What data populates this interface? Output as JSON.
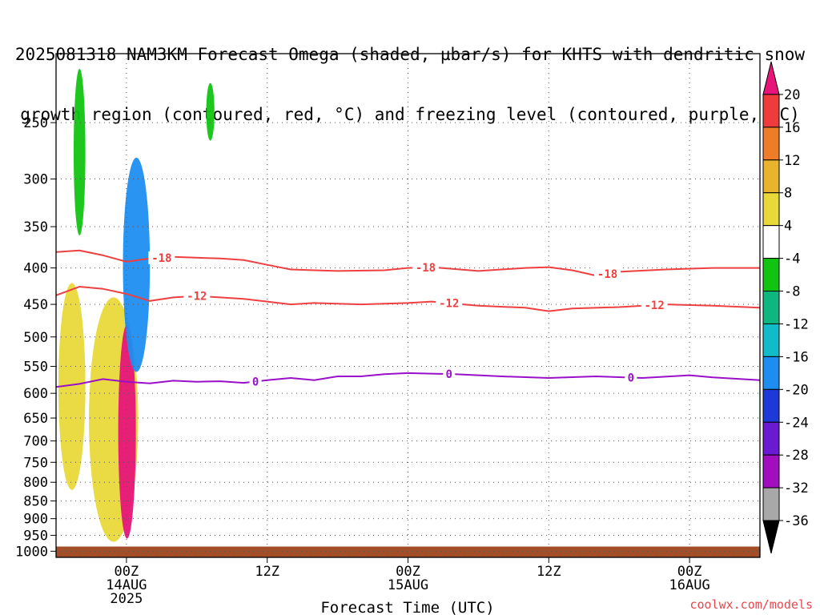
{
  "title": {
    "line1": "2025081318 NAM3KM Forecast Omega (shaded, µbar/s) for KHTS with dendritic snow",
    "line2": "growth region (contoured, red, °C) and freezing level (contoured, purple, °C)"
  },
  "credit": "coolwx.com/models",
  "chart_data": {
    "type": "heatmap",
    "title": "2025081318 NAM3KM Forecast Omega (shaded, µbar/s) for KHTS with dendritic snow growth region (contoured, red, °C) and freezing level (contoured, purple, °C)",
    "xlabel": "Forecast Time (UTC)",
    "ylabel": "",
    "x_range_hours": [
      -6,
      54
    ],
    "y_scale": "log",
    "y_range_mb": [
      200,
      1020
    ],
    "x_ticks": [
      {
        "hours": 0,
        "lines": [
          "00Z",
          "14AUG",
          "2025"
        ]
      },
      {
        "hours": 12,
        "lines": [
          "12Z"
        ]
      },
      {
        "hours": 24,
        "lines": [
          "00Z",
          "15AUG"
        ]
      },
      {
        "hours": 36,
        "lines": [
          "12Z"
        ]
      },
      {
        "hours": 48,
        "lines": [
          "00Z",
          "16AUG"
        ]
      }
    ],
    "y_ticks": [
      "250",
      "300",
      "350",
      "400",
      "450",
      "500",
      "550",
      "600",
      "650",
      "700",
      "750",
      "800",
      "850",
      "900",
      "950",
      "1000"
    ],
    "y_tick_values": [
      250,
      300,
      350,
      400,
      450,
      500,
      550,
      600,
      650,
      700,
      750,
      800,
      850,
      900,
      950,
      1000
    ],
    "grid": "dotted",
    "colorbar": {
      "labels": [
        "20",
        "16",
        "12",
        "8",
        "4",
        "-4",
        "-8",
        "-12",
        "-16",
        "-20",
        "-24",
        "-28",
        "-32",
        "-36"
      ],
      "bands": [
        {
          "range": [
            20,
            999
          ],
          "color": "#e7157a"
        },
        {
          "range": [
            16,
            20
          ],
          "color": "#ee3c3c"
        },
        {
          "range": [
            12,
            16
          ],
          "color": "#ee7c28"
        },
        {
          "range": [
            8,
            12
          ],
          "color": "#e9b32e"
        },
        {
          "range": [
            4,
            8
          ],
          "color": "#e9d83a"
        },
        {
          "range": [
            -4,
            4
          ],
          "color": "#ffffff"
        },
        {
          "range": [
            -8,
            -4
          ],
          "color": "#11c411"
        },
        {
          "range": [
            -12,
            -8
          ],
          "color": "#0fb680"
        },
        {
          "range": [
            -16,
            -12
          ],
          "color": "#11bcc8"
        },
        {
          "range": [
            -20,
            -16
          ],
          "color": "#1d8ef0"
        },
        {
          "range": [
            -24,
            -20
          ],
          "color": "#1d3ad8"
        },
        {
          "range": [
            -28,
            -24
          ],
          "color": "#6a1ad0"
        },
        {
          "range": [
            -32,
            -28
          ],
          "color": "#a10ec0"
        },
        {
          "range": [
            -36,
            -32
          ],
          "color": "#a8a8a8"
        },
        {
          "range": [
            -999,
            -36
          ],
          "color": "#000000"
        }
      ]
    },
    "contours": [
      {
        "label": "-18",
        "color": "#ee4040",
        "label_hours": [
          3,
          25.5,
          41
        ],
        "points": [
          [
            -6,
            380
          ],
          [
            -4,
            378
          ],
          [
            -2,
            384
          ],
          [
            0,
            392
          ],
          [
            2,
            388
          ],
          [
            4,
            386
          ],
          [
            8,
            388
          ],
          [
            10,
            390
          ],
          [
            12,
            396
          ],
          [
            14,
            402
          ],
          [
            18,
            404
          ],
          [
            22,
            403
          ],
          [
            24,
            400
          ],
          [
            26,
            399
          ],
          [
            30,
            404
          ],
          [
            34,
            400
          ],
          [
            36,
            399
          ],
          [
            38,
            403
          ],
          [
            40,
            410
          ],
          [
            42,
            405
          ],
          [
            46,
            402
          ],
          [
            50,
            400
          ],
          [
            54,
            400
          ]
        ]
      },
      {
        "label": "-12",
        "color": "#ee4040",
        "label_hours": [
          6,
          27.5,
          45
        ],
        "points": [
          [
            -6,
            437
          ],
          [
            -4,
            425
          ],
          [
            -2,
            428
          ],
          [
            0,
            435
          ],
          [
            2,
            445
          ],
          [
            4,
            440
          ],
          [
            6,
            438
          ],
          [
            8,
            440
          ],
          [
            10,
            442
          ],
          [
            12,
            446
          ],
          [
            14,
            450
          ],
          [
            16,
            448
          ],
          [
            20,
            450
          ],
          [
            24,
            448
          ],
          [
            26,
            446
          ],
          [
            30,
            452
          ],
          [
            34,
            455
          ],
          [
            36,
            460
          ],
          [
            38,
            456
          ],
          [
            42,
            454
          ],
          [
            46,
            450
          ],
          [
            50,
            452
          ],
          [
            54,
            455
          ]
        ]
      },
      {
        "label": "0",
        "color": "#9a10c8",
        "label_hours": [
          11,
          27.5,
          43
        ],
        "points": [
          [
            -6,
            588
          ],
          [
            -4,
            582
          ],
          [
            -2,
            573
          ],
          [
            0,
            578
          ],
          [
            2,
            581
          ],
          [
            4,
            576
          ],
          [
            6,
            578
          ],
          [
            8,
            577
          ],
          [
            10,
            580
          ],
          [
            12,
            575
          ],
          [
            14,
            571
          ],
          [
            16,
            575
          ],
          [
            18,
            568
          ],
          [
            20,
            568
          ],
          [
            22,
            564
          ],
          [
            24,
            562
          ],
          [
            26,
            563
          ],
          [
            28,
            564
          ],
          [
            32,
            568
          ],
          [
            36,
            571
          ],
          [
            40,
            568
          ],
          [
            44,
            571
          ],
          [
            48,
            566
          ],
          [
            50,
            570
          ],
          [
            54,
            575
          ]
        ]
      }
    ],
    "omega_features": [
      {
        "color": "#e9d83a",
        "note": "weak rising motion ~4-8",
        "x_hours": [
          -5.8,
          -3.5
        ],
        "p_mb": [
          420,
          820
        ]
      },
      {
        "color": "#e9d83a",
        "note": "rising motion column",
        "x_hours": [
          -3.2,
          1.0
        ],
        "p_mb": [
          440,
          970
        ]
      },
      {
        "color": "#e7157a",
        "note": "strong rising motion >20",
        "x_hours": [
          -0.7,
          0.8
        ],
        "p_mb": [
          480,
          960
        ]
      },
      {
        "color": "#11c411",
        "note": "sinking motion band",
        "x_hours": [
          -4.5,
          -3.5
        ],
        "p_mb": [
          210,
          360
        ]
      },
      {
        "color": "#1d8ef0",
        "note": "strong sinking -16 to -20",
        "x_hours": [
          -0.3,
          2.0
        ],
        "p_mb": [
          280,
          560
        ]
      },
      {
        "color": "#11c411",
        "note": "isolated sinking",
        "x_hours": [
          6.8,
          7.5
        ],
        "p_mb": [
          220,
          265
        ]
      }
    ],
    "terrain": {
      "color": "#a24e28",
      "pressure_mb": 985
    }
  },
  "colors": {
    "frame": "#000000",
    "grid": "#555555",
    "credit": "#e8474d"
  }
}
